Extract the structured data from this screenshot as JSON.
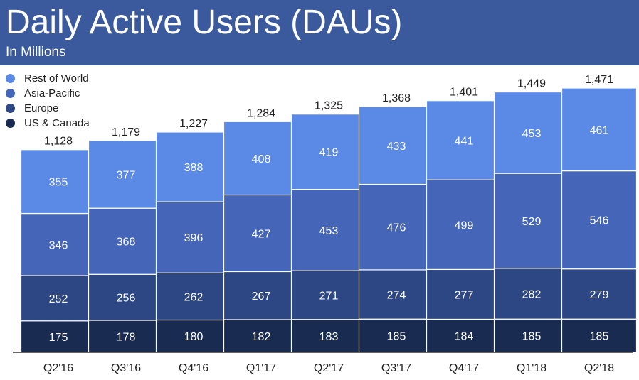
{
  "header": {
    "title": "Daily Active Users (DAUs)",
    "subtitle": "In Millions"
  },
  "colors": {
    "header_bg": "#3b5a9e",
    "rest_of_world": "#5b8ae6",
    "asia_pacific": "#4566b8",
    "europe": "#2d4784",
    "us_canada": "#1a2b52"
  },
  "chart_data": {
    "type": "bar",
    "stacked": true,
    "title": "Daily Active Users (DAUs)",
    "subtitle": "In Millions",
    "categories": [
      "Q2'16",
      "Q3'16",
      "Q4'16",
      "Q1'17",
      "Q2'17",
      "Q3'17",
      "Q4'17",
      "Q1'18",
      "Q2'18"
    ],
    "series": [
      {
        "name": "US & Canada",
        "color": "#1a2b52",
        "values": [
          175,
          178,
          180,
          182,
          183,
          185,
          184,
          185,
          185
        ]
      },
      {
        "name": "Europe",
        "color": "#2d4784",
        "values": [
          252,
          256,
          262,
          267,
          271,
          274,
          277,
          282,
          279
        ]
      },
      {
        "name": "Asia-Pacific",
        "color": "#4566b8",
        "values": [
          346,
          368,
          396,
          427,
          453,
          476,
          499,
          529,
          546
        ]
      },
      {
        "name": "Rest of World",
        "color": "#5b8ae6",
        "values": [
          355,
          377,
          388,
          408,
          419,
          433,
          441,
          453,
          461
        ]
      }
    ],
    "totals": [
      "1,128",
      "1,179",
      "1,227",
      "1,284",
      "1,325",
      "1,368",
      "1,401",
      "1,449",
      "1,471"
    ],
    "legend_order": [
      "Rest of World",
      "Asia-Pacific",
      "Europe",
      "US & Canada"
    ],
    "legend_position": "top-left",
    "ylim": [
      0,
      1471
    ],
    "grid": false
  }
}
